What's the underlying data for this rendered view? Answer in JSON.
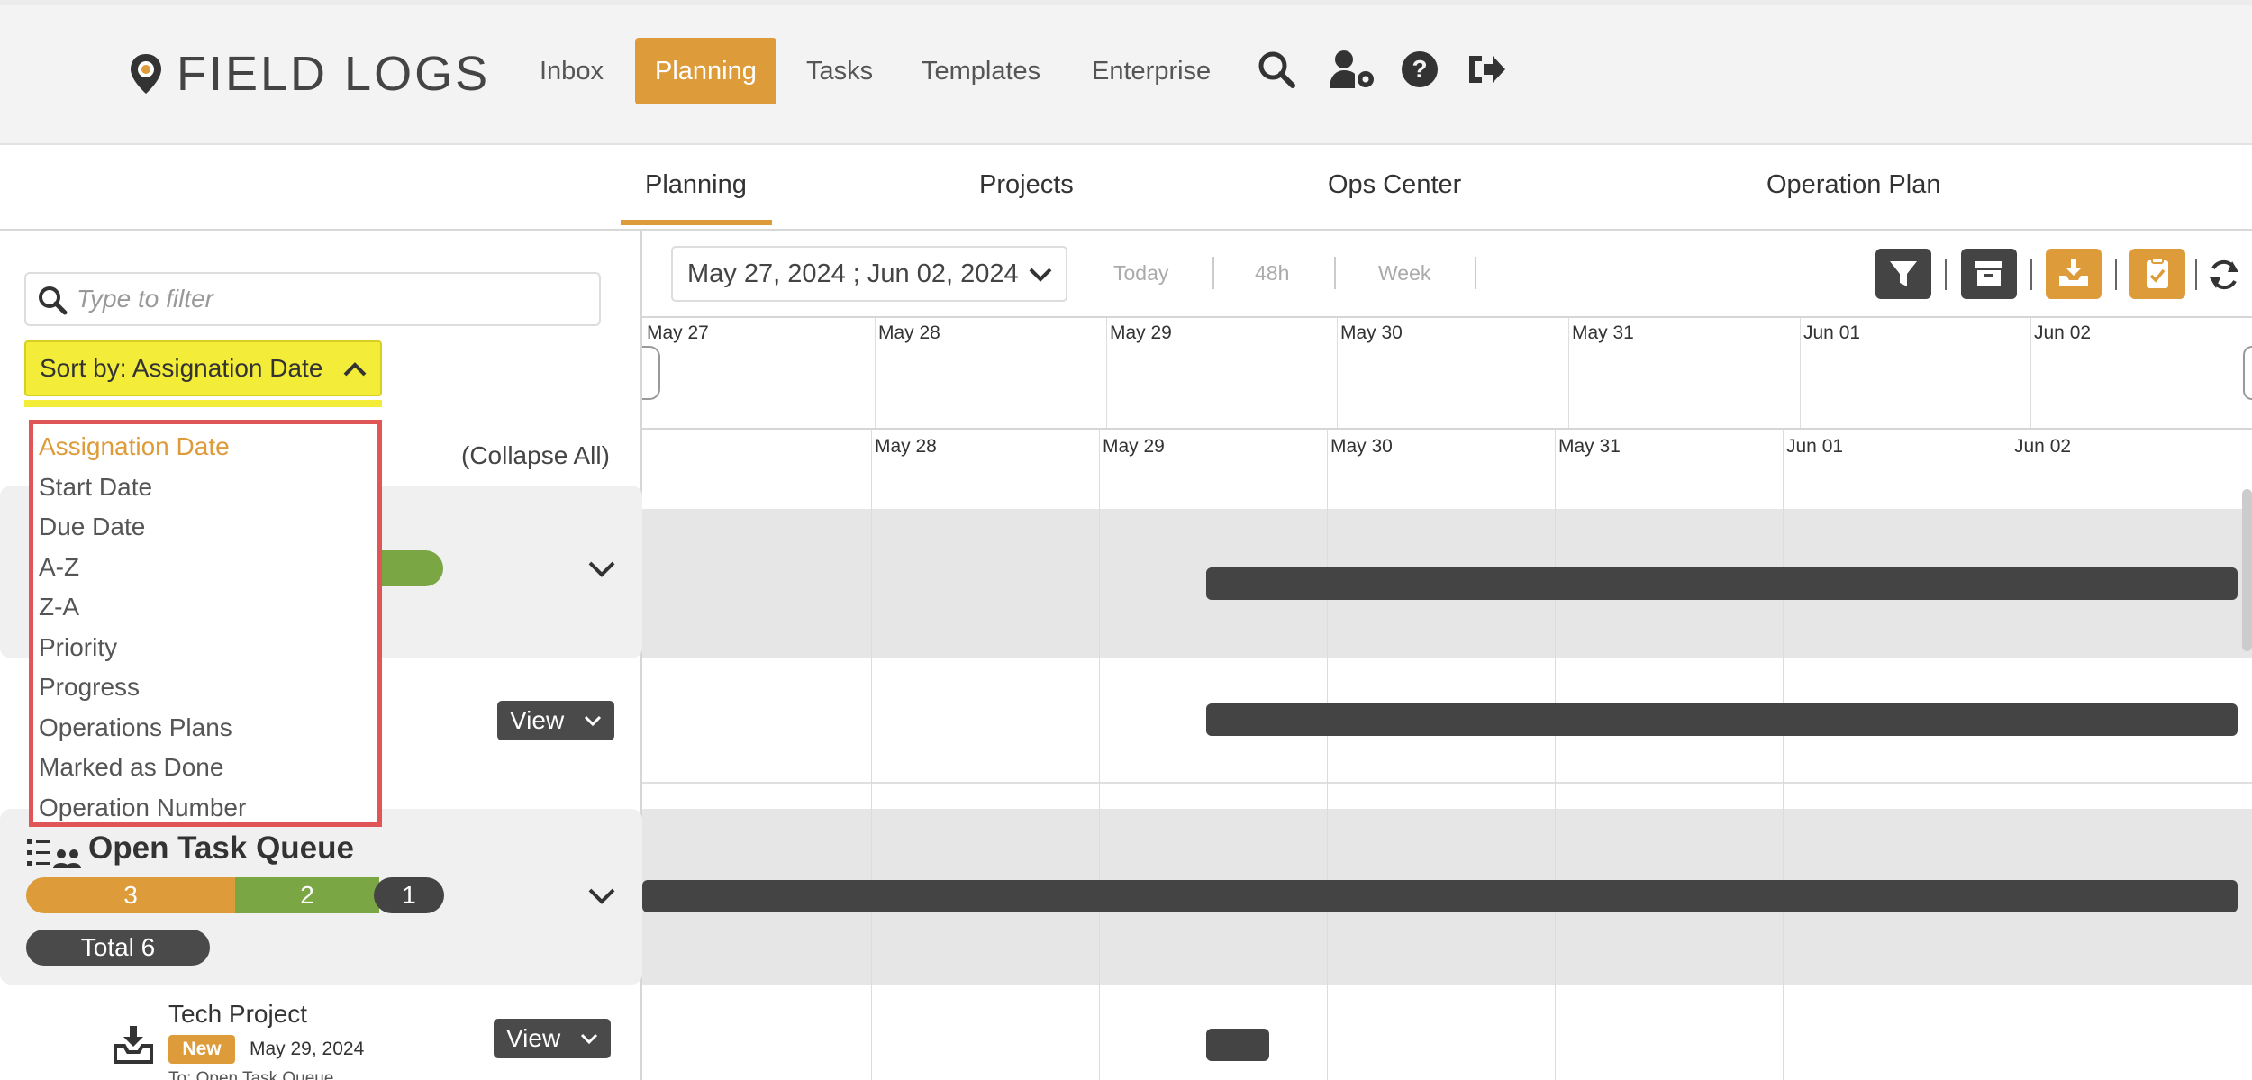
{
  "app": {
    "brand": "FIELD LOGS"
  },
  "nav": {
    "links": [
      {
        "label": "Inbox"
      },
      {
        "label": "Planning"
      },
      {
        "label": "Tasks"
      },
      {
        "label": "Templates"
      },
      {
        "label": "Enterprise"
      }
    ],
    "active": "Planning",
    "icons": [
      "search-icon",
      "user-settings-icon",
      "help-icon",
      "logout-icon"
    ]
  },
  "subnav": {
    "tabs": [
      {
        "label": "Planning"
      },
      {
        "label": "Projects"
      },
      {
        "label": "Ops Center"
      },
      {
        "label": "Operation Plan"
      }
    ],
    "active": "Planning"
  },
  "filter": {
    "placeholder": "Type to filter"
  },
  "sort": {
    "label": "Sort by: Assignation Date",
    "options": [
      "Assignation Date",
      "Start Date",
      "Due Date",
      "A-Z",
      "Z-A",
      "Priority",
      "Progress",
      "Operations Plans",
      "Marked as Done",
      "Operation Number"
    ],
    "selected": "Assignation Date"
  },
  "list": {
    "collapse_all": "(Collapse All)",
    "view_label": "View",
    "groups": [
      {
        "title": "Open Task Queue",
        "counts": [
          "3",
          "2",
          "1"
        ],
        "total": "Total 6"
      }
    ],
    "items": [
      {
        "title": "Tech Project",
        "badge": "New",
        "date": "May 29, 2024",
        "subtitle": "To: Open Task Queue"
      }
    ]
  },
  "timeline": {
    "date_range": "May 27, 2024 ; Jun 02, 2024",
    "zoom": [
      "Today",
      "48h",
      "Week"
    ],
    "scale_top": [
      "May 27",
      "May 28",
      "May 29",
      "May 30",
      "May 31",
      "Jun 01",
      "Jun 02"
    ],
    "scale_bottom": [
      "May 28",
      "May 29",
      "May 30",
      "May 31",
      "Jun 01",
      "Jun 02"
    ],
    "tools": [
      "filter-icon",
      "archive-icon",
      "inbox-download-icon",
      "clipboard-check-icon",
      "refresh-icon"
    ]
  },
  "colors": {
    "accent": "#dd9b3a",
    "green": "#7aa644",
    "dark": "#444444",
    "highlight": "#f3ec38",
    "menu_border": "#e05555"
  }
}
